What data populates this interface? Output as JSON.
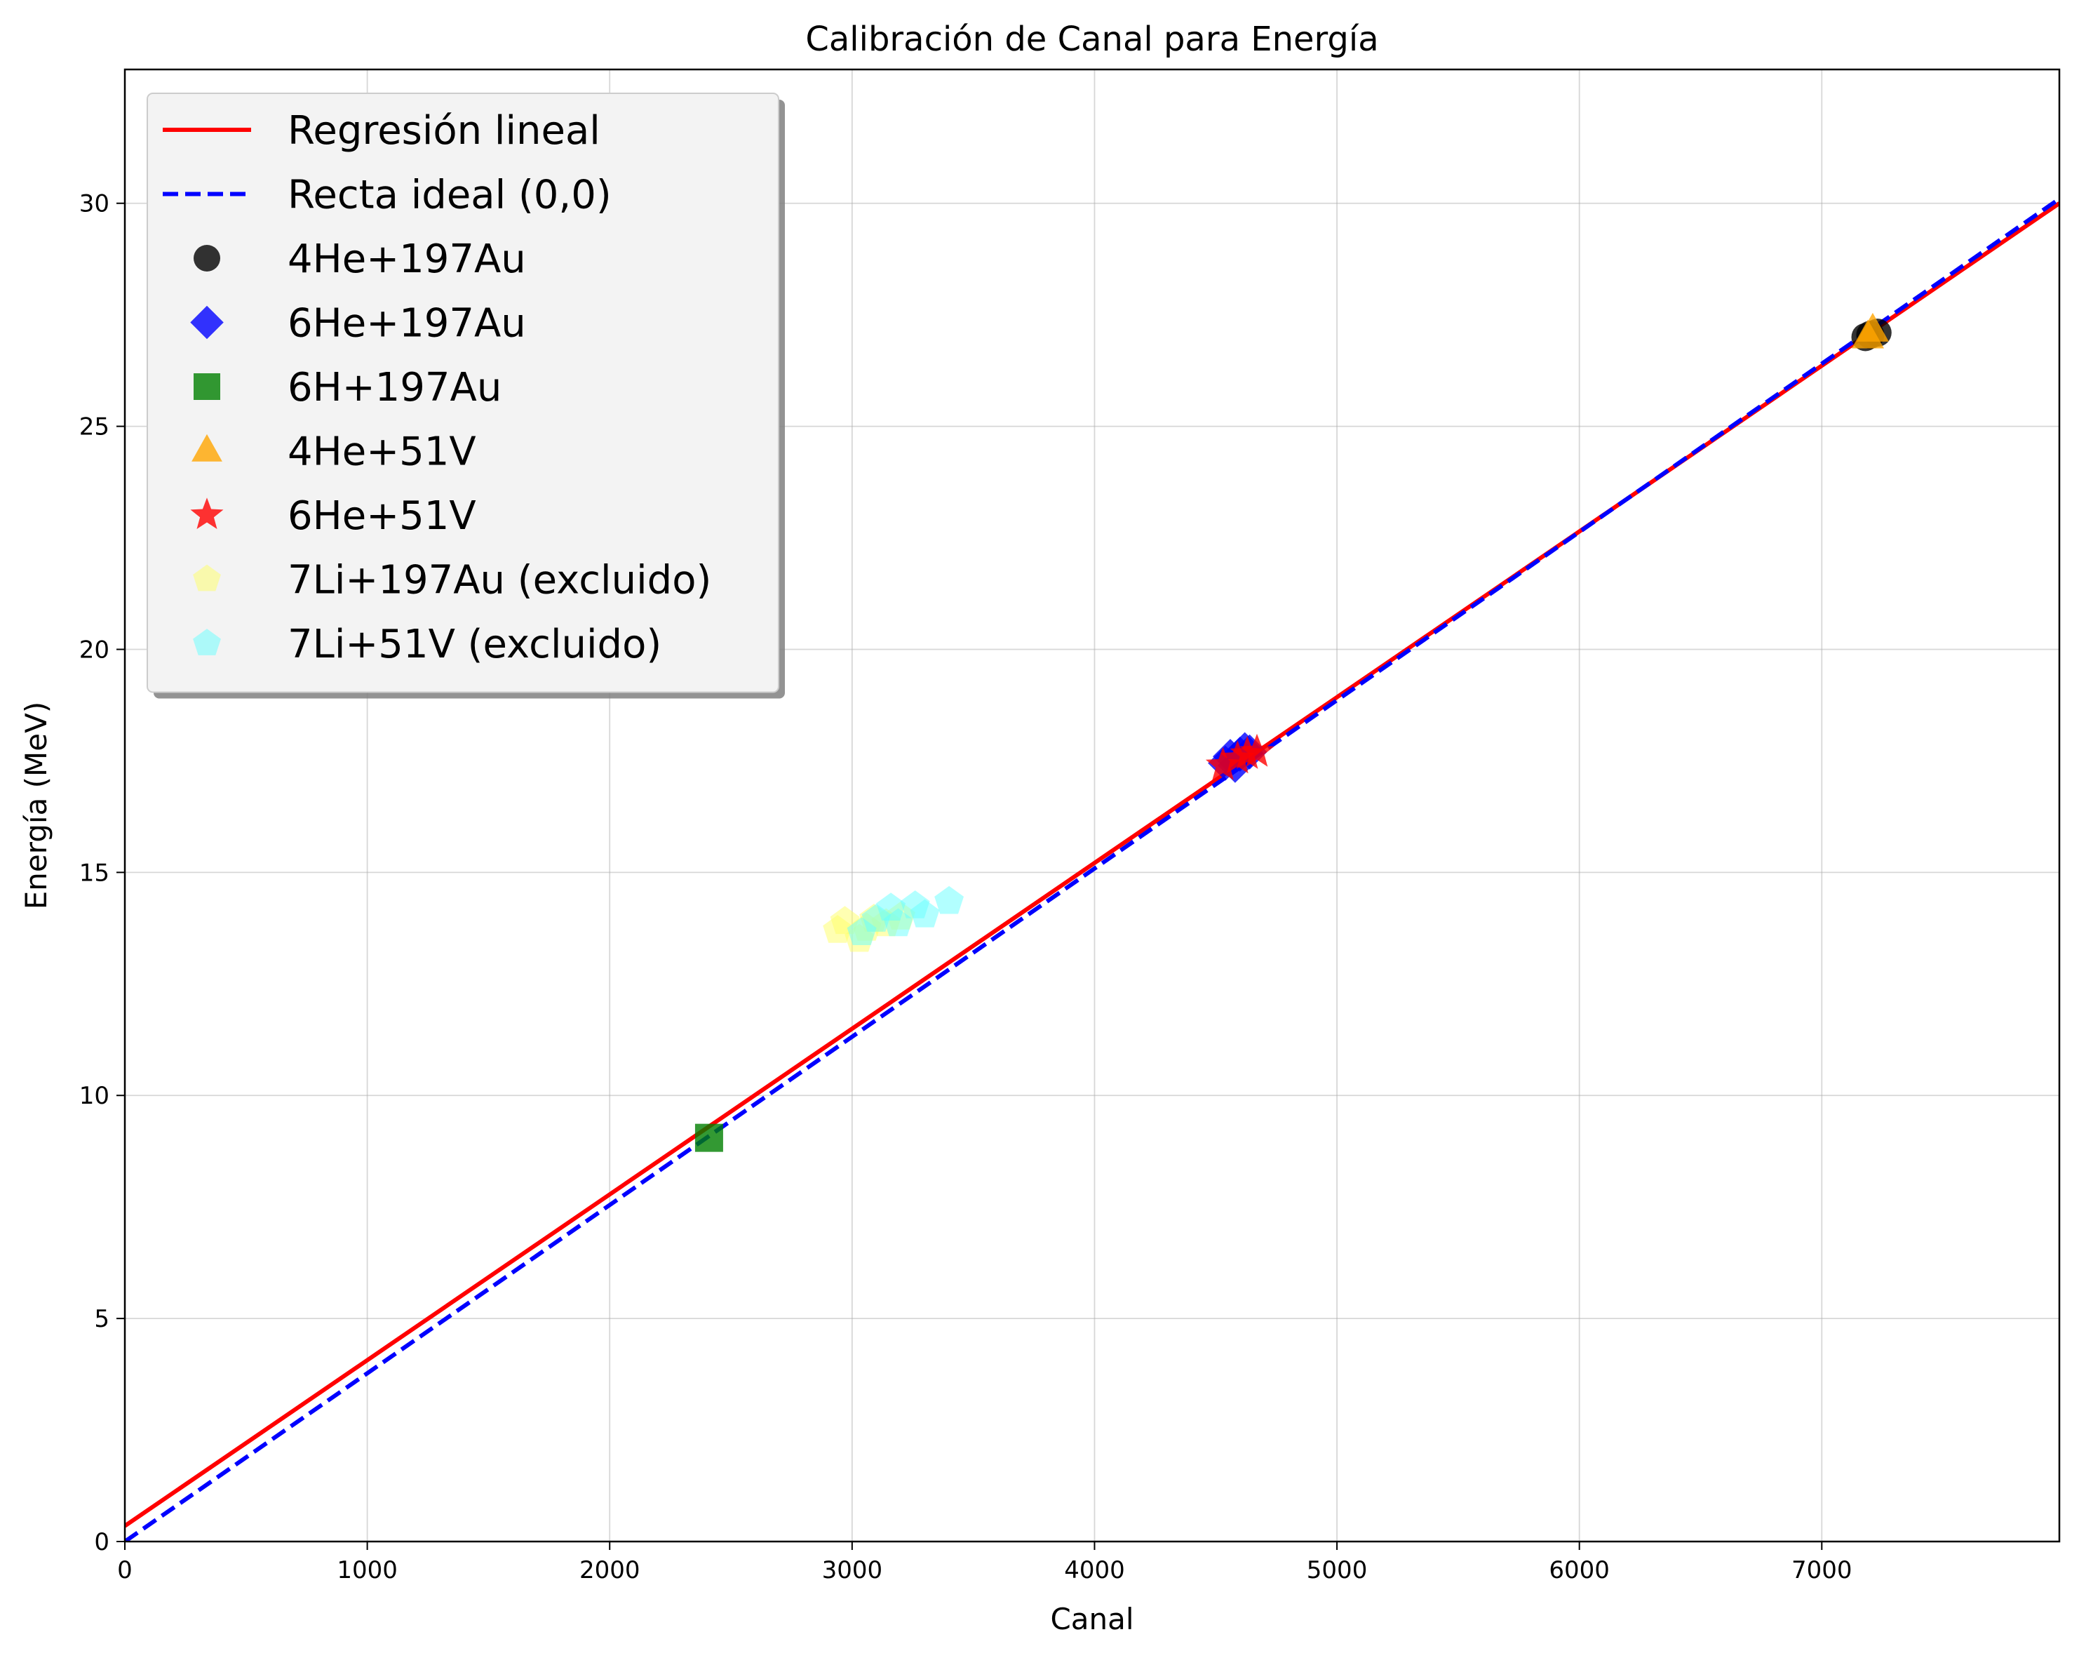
{
  "chart_data": {
    "type": "scatter",
    "title": "Calibración de Canal para Energía",
    "xlabel": "Canal",
    "ylabel": "Energía (MeV)",
    "xlim": [
      0,
      7980
    ],
    "ylim": [
      0,
      33
    ],
    "xticks": [
      0,
      1000,
      2000,
      3000,
      4000,
      5000,
      6000,
      7000
    ],
    "yticks": [
      0,
      5,
      10,
      15,
      20,
      25,
      30
    ],
    "grid": true,
    "legend_position": "upper-left",
    "lines": [
      {
        "name": "Regresión lineal",
        "color": "#ff0000",
        "style": "solid",
        "x": [
          0,
          7980
        ],
        "y": [
          0.35,
          30.0
        ]
      },
      {
        "name": "Recta ideal (0,0)",
        "color": "#0000ff",
        "style": "dashed",
        "x": [
          0,
          7980
        ],
        "y": [
          0.0,
          30.1
        ]
      }
    ],
    "series": [
      {
        "name": "4He+197Au",
        "marker": "circle",
        "color": "#000000",
        "alpha": 0.8,
        "x": [
          7180,
          7200,
          7230
        ],
        "y": [
          27.0,
          27.05,
          27.1
        ]
      },
      {
        "name": "6He+197Au",
        "marker": "diamond",
        "color": "#0000ff",
        "alpha": 0.8,
        "x": [
          4540,
          4560,
          4580,
          4600,
          4620,
          4640
        ],
        "y": [
          17.45,
          17.6,
          17.4,
          17.65,
          17.75,
          17.7
        ]
      },
      {
        "name": "6H+197Au",
        "marker": "square",
        "color": "#008000",
        "alpha": 0.8,
        "x": [
          2410
        ],
        "y": [
          9.05
        ]
      },
      {
        "name": "4He+51V",
        "marker": "triangle",
        "color": "#ffa500",
        "alpha": 0.8,
        "x": [
          7190,
          7210
        ],
        "y": [
          27.0,
          27.15
        ]
      },
      {
        "name": "6He+51V",
        "marker": "star",
        "color": "#ff0000",
        "alpha": 0.8,
        "x": [
          4530,
          4590,
          4630,
          4670
        ],
        "y": [
          17.4,
          17.55,
          17.65,
          17.7
        ]
      },
      {
        "name": "7Li+197Au (excluido)",
        "marker": "pentagon",
        "color": "#ffff66",
        "alpha": 0.5,
        "x": [
          2940,
          2970,
          3030,
          3060,
          3090,
          3140,
          3200
        ],
        "y": [
          13.7,
          13.9,
          13.5,
          13.75,
          13.95,
          13.85,
          14.0
        ]
      },
      {
        "name": "7Li+51V (excluido)",
        "marker": "pentagon",
        "color": "#66ffff",
        "alpha": 0.5,
        "x": [
          3040,
          3100,
          3160,
          3190,
          3260,
          3300,
          3400
        ],
        "y": [
          13.65,
          13.95,
          14.2,
          13.85,
          14.25,
          14.05,
          14.35
        ]
      }
    ]
  }
}
